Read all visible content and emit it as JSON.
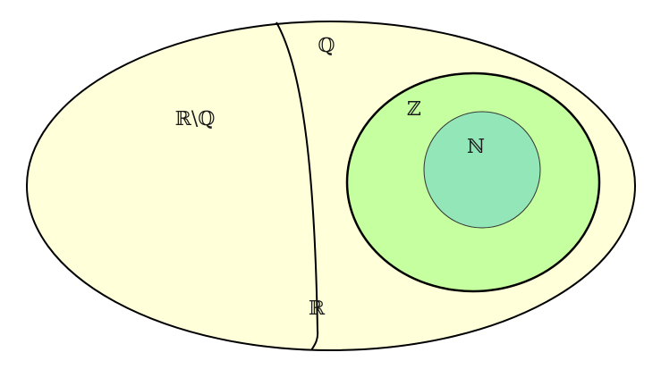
{
  "diagram": {
    "labels": {
      "rationals": "ℚ",
      "irrationals": "ℝ\\ℚ",
      "integers": "ℤ",
      "naturals": "ℕ",
      "reals": "ℝ"
    },
    "colors": {
      "reals_fill": "#ffffd9",
      "integers_fill": "#c5ff9f",
      "naturals_fill": "#93e6b8",
      "stroke": "#000000"
    }
  }
}
